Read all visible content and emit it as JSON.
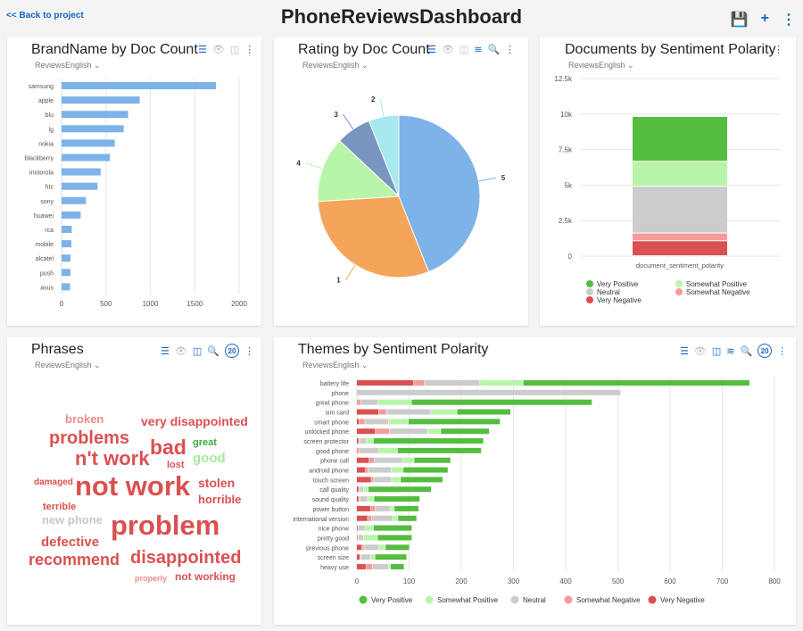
{
  "header": {
    "back_label": "<< Back to project",
    "title": "PhoneReviewsDashboard",
    "icons": [
      "save-icon",
      "plus-icon",
      "more-vert-icon"
    ]
  },
  "colors": {
    "very_positive": "#54bd3f",
    "somewhat_positive": "#b9f5a9",
    "neutral": "#cccccc",
    "somewhat_negative": "#f59a9a",
    "very_negative": "#db5050",
    "accent": "#1565c0"
  },
  "panels": {
    "brand": {
      "title": "BrandName by Doc Count",
      "source": "ReviewsEnglish"
    },
    "rating": {
      "title": "Rating by Doc Count",
      "source": "ReviewsEnglish"
    },
    "sentiment": {
      "title": "Documents by Sentiment Polarity",
      "source": "ReviewsEnglish"
    },
    "phrases": {
      "title": "Phrases",
      "source": "ReviewsEnglish",
      "count_badge": "20",
      "words": [
        "broken",
        "very disappointed",
        "problems",
        "n't work",
        "bad",
        "great",
        "good",
        "lost",
        "damaged",
        "not work",
        "stolen",
        "horrible",
        "terrible",
        "new phone",
        "problem",
        "defective",
        "recommend",
        "disappointed",
        "properly",
        "not working"
      ]
    },
    "themes": {
      "title": "Themes by Sentiment Polarity",
      "source": "ReviewsEnglish",
      "count_badge": "20"
    }
  },
  "chart_data": [
    {
      "type": "bar",
      "orientation": "horizontal",
      "categories": [
        "samsung",
        "apple",
        "blu",
        "lg",
        "nokia",
        "blackberry",
        "motorola",
        "htc",
        "sony",
        "huawei",
        "rca",
        "mobile",
        "alcatel",
        "posh",
        "asus"
      ],
      "values": [
        1740,
        880,
        750,
        700,
        600,
        545,
        440,
        405,
        275,
        215,
        115,
        110,
        100,
        100,
        95
      ],
      "xlim": [
        0,
        2000
      ],
      "xticks": [
        "0",
        "500",
        "1000",
        "1500",
        "2000"
      ],
      "grid": true
    },
    {
      "type": "pie",
      "categories": [
        "5",
        "1",
        "4",
        "3",
        "2"
      ],
      "values_percent": [
        44,
        30,
        13,
        7,
        6
      ],
      "colors": [
        "#7db3e8",
        "#f5a55a",
        "#b9f5a9",
        "#7896c0",
        "#a7e9ee"
      ]
    },
    {
      "type": "bar",
      "stacked": true,
      "categories": [
        "document_sentiment_polarity"
      ],
      "ylim": [
        0,
        12500
      ],
      "yticks": [
        "0",
        "2.5k",
        "5k",
        "7.5k",
        "10k",
        "12.5k"
      ],
      "series": [
        {
          "name": "Very Negative",
          "values": [
            1050
          ]
        },
        {
          "name": "Somewhat Negative",
          "values": [
            550
          ]
        },
        {
          "name": "Neutral",
          "values": [
            3280
          ]
        },
        {
          "name": "Somewhat Positive",
          "values": [
            1770
          ]
        },
        {
          "name": "Very Positive",
          "values": [
            3150
          ]
        }
      ],
      "legend": [
        "Very Positive",
        "Somewhat Positive",
        "Neutral",
        "Somewhat Negative",
        "Very Negative"
      ],
      "legend_position": "bottom"
    },
    {
      "type": "bar",
      "orientation": "horizontal",
      "stacked": true,
      "categories": [
        "battery life",
        "phone",
        "great phone",
        "sim card",
        "smart phone",
        "unlocked phone",
        "screen protector",
        "good phone",
        "phone call",
        "android phone",
        "touch screen",
        "call quality",
        "sound quality",
        "power button",
        "international version",
        "nice phone",
        "pretty good",
        "previous phone",
        "screen size",
        "heavy use"
      ],
      "series": [
        {
          "name": "Very Negative",
          "values": [
            109,
            0,
            2,
            42,
            5,
            36,
            4,
            0,
            24,
            17,
            28,
            4,
            4,
            27,
            21,
            1,
            0,
            10,
            6,
            18
          ]
        },
        {
          "name": "Somewhat Negative",
          "values": [
            21,
            0,
            6,
            15,
            11,
            27,
            2,
            5,
            10,
            5,
            5,
            2,
            2,
            9,
            8,
            2,
            3,
            4,
            2,
            12
          ]
        },
        {
          "name": "Neutral",
          "values": [
            106,
            506,
            33,
            85,
            45,
            73,
            13,
            38,
            54,
            44,
            34,
            7,
            15,
            28,
            40,
            13,
            10,
            29,
            19,
            31
          ]
        },
        {
          "name": "Somewhat Positive",
          "values": [
            83,
            0,
            64,
            50,
            38,
            25,
            13,
            35,
            22,
            23,
            17,
            9,
            12,
            8,
            10,
            16,
            27,
            12,
            8,
            4
          ]
        },
        {
          "name": "Very Positive",
          "values": [
            434,
            0,
            346,
            103,
            176,
            93,
            211,
            161,
            70,
            86,
            81,
            121,
            88,
            47,
            36,
            74,
            66,
            46,
            61,
            26
          ]
        }
      ],
      "xlim": [
        0,
        800
      ],
      "xticks": [
        "0",
        "100",
        "200",
        "300",
        "400",
        "500",
        "600",
        "700",
        "800"
      ],
      "legend": [
        "Very Positive",
        "Somewhat Positive",
        "Neutral",
        "Somewhat Negative",
        "Very Negative"
      ],
      "legend_position": "bottom",
      "grid": true
    }
  ]
}
